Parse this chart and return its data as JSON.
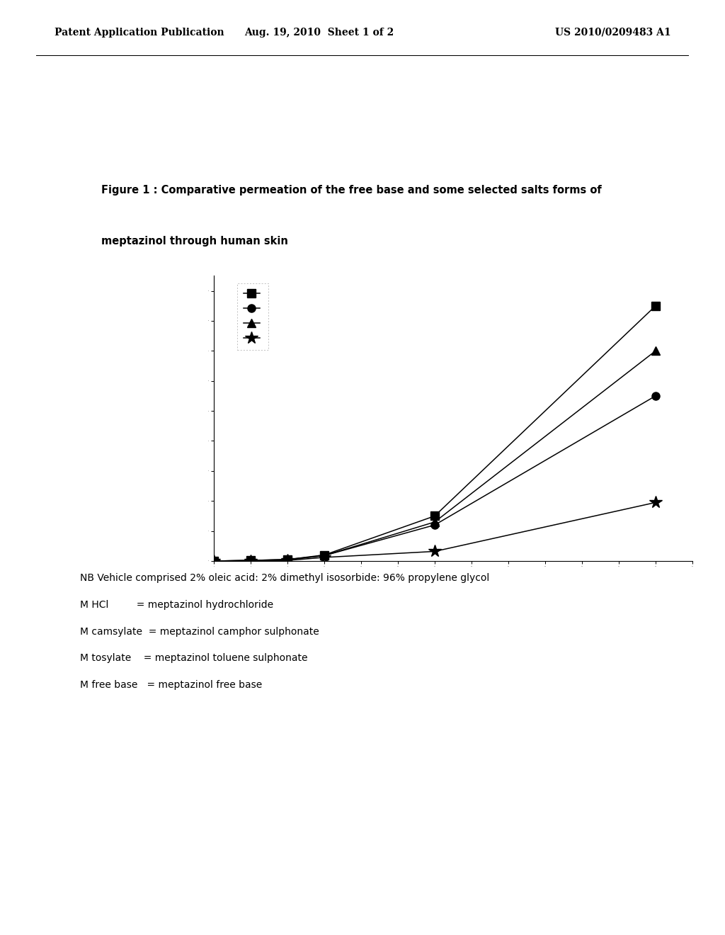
{
  "header_left": "Patent Application Publication",
  "header_center": "Aug. 19, 2010  Sheet 1 of 2",
  "header_right": "US 2010/0209483 A1",
  "figure_caption_line1": "Figure 1 : Comparative permeation of the free base and some selected salts forms of",
  "figure_caption_line2": "meptazinol through human skin",
  "series": [
    {
      "marker": "s",
      "x": [
        0,
        4,
        8,
        12,
        24,
        48
      ],
      "y": [
        0,
        0.02,
        0.05,
        0.2,
        1.5,
        8.5
      ]
    },
    {
      "marker": "o",
      "x": [
        0,
        4,
        8,
        12,
        24,
        48
      ],
      "y": [
        0,
        0.02,
        0.05,
        0.18,
        1.2,
        5.5
      ]
    },
    {
      "marker": "^",
      "x": [
        0,
        4,
        8,
        12,
        24,
        48
      ],
      "y": [
        0,
        0.02,
        0.04,
        0.18,
        1.3,
        7.0
      ]
    },
    {
      "marker": "*",
      "x": [
        0,
        4,
        8,
        12,
        24,
        48
      ],
      "y": [
        0,
        0.0,
        0.02,
        0.12,
        0.32,
        1.95
      ]
    }
  ],
  "xlim": [
    0,
    52
  ],
  "ylim": [
    0,
    9.5
  ],
  "linewidth": 1.1,
  "markersize": 8,
  "asterisk_markersize": 13,
  "footnotes": [
    "NB Vehicle comprised 2% oleic acid: 2% dimethyl isosorbide: 96% propylene glycol",
    "M HCl         = meptazinol hydrochloride",
    "M camsylate  = meptazinol camphor sulphonate",
    "M tosylate    = meptazinol toluene sulphonate",
    "M free base   = meptazinol free base"
  ]
}
